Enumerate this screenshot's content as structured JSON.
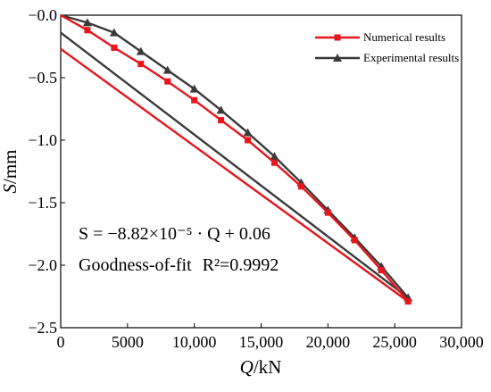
{
  "chart_data": {
    "type": "line",
    "xlabel": {
      "var": "Q",
      "unit": "/kN"
    },
    "ylabel": {
      "var": "S",
      "unit": "/mm"
    },
    "xlim": [
      0,
      30000
    ],
    "ylim": [
      -2.5,
      0.0
    ],
    "x_ticks": [
      0,
      5000,
      10000,
      15000,
      20000,
      25000,
      30000
    ],
    "x_tick_labels": [
      "0",
      "5000",
      "10,000",
      "15,000",
      "20,000",
      "25,000",
      "30,000"
    ],
    "y_ticks": [
      0.0,
      -0.5,
      -1.0,
      -1.5,
      -2.0,
      -2.5
    ],
    "y_tick_labels": [
      "−0.0",
      "−0.5",
      "−1.0",
      "−1.5",
      "−2.0",
      "−2.5"
    ],
    "grid": false,
    "legend_position": "top-right",
    "series": [
      {
        "name": "Numerical results",
        "color": "#e8151b",
        "marker": "square",
        "x": [
          0,
          2000,
          4000,
          6000,
          8000,
          10000,
          12000,
          14000,
          16000,
          18000,
          20000,
          22000,
          24000,
          26000,
          0
        ],
        "y": [
          0.0,
          -0.12,
          -0.26,
          -0.39,
          -0.53,
          -0.68,
          -0.84,
          -1.0,
          -1.18,
          -1.37,
          -1.58,
          -1.8,
          -2.04,
          -2.29,
          -0.27
        ],
        "markers_on": [
          1,
          2,
          3,
          4,
          5,
          6,
          7,
          8,
          9,
          10,
          11,
          12,
          13
        ]
      },
      {
        "name": "Experimental results",
        "color": "#3a3a3a",
        "marker": "triangle",
        "x": [
          0,
          2000,
          4000,
          6000,
          8000,
          10000,
          12000,
          14000,
          16000,
          18000,
          20000,
          22000,
          24000,
          26000,
          0
        ],
        "y": [
          0.0,
          -0.06,
          -0.14,
          -0.29,
          -0.44,
          -0.59,
          -0.76,
          -0.94,
          -1.13,
          -1.34,
          -1.56,
          -1.78,
          -2.01,
          -2.26,
          -0.14
        ],
        "markers_on": [
          1,
          2,
          3,
          4,
          5,
          6,
          7,
          8,
          9,
          10,
          11,
          12,
          13
        ]
      }
    ],
    "annotations": {
      "equation": "S = −8.82×10⁻⁵ · Q + 0.06",
      "goodness_label": "Goodness-of-fit",
      "r2_label": "R²=0.9992"
    }
  }
}
